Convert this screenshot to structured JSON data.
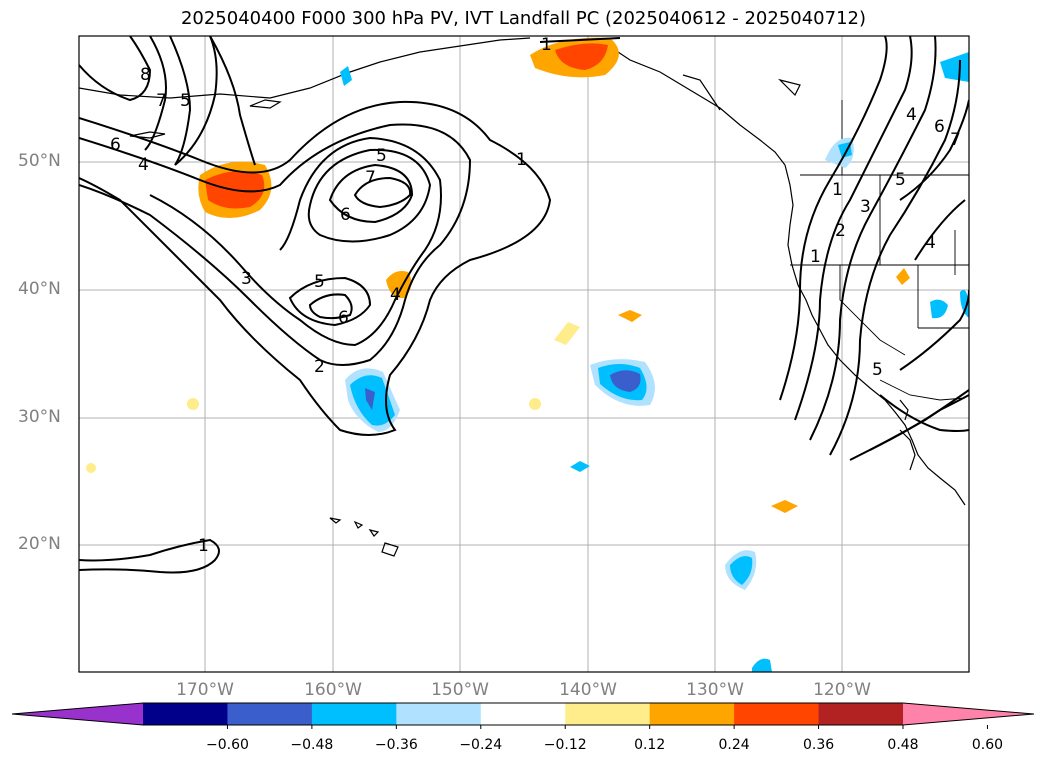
{
  "title": "2025040400 F000 300 hPa PV, IVT Landfall PC (2025040612 - 2025040712)",
  "lat_labels": [
    "50°N",
    "40°N",
    "30°N",
    "20°N"
  ],
  "lon_labels": [
    "170°W",
    "160°W",
    "150°W",
    "140°W",
    "130°W",
    "120°W"
  ],
  "colorbar": {
    "colors": [
      "#9932cc",
      "#00008b",
      "#3a5fcd",
      "#00bfff",
      "#b0e2ff",
      "#ffffff",
      "#ffec8b",
      "#ffa500",
      "#ff4500",
      "#b22222",
      "#ff82ab"
    ],
    "ticks": [
      "−0.60",
      "−0.48",
      "−0.36",
      "−0.24",
      "−0.12",
      "0.12",
      "0.24",
      "0.36",
      "0.48",
      "0.60"
    ]
  },
  "contour_labels": {
    "l1a": "1",
    "l1b": "1",
    "l1c": "1",
    "l1d": "1",
    "l1e": "1",
    "l2a": "2",
    "l2b": "2",
    "l3a": "3",
    "l3b": "3",
    "l4a": "4",
    "l4b": "4",
    "l4c": "4",
    "l4d": "4",
    "l5a": "5",
    "l5b": "5",
    "l5c": "5",
    "l5d": "5",
    "l5e": "5",
    "l6a": "6",
    "l6b": "6",
    "l6c": "6",
    "l6d": "6",
    "l7a": "7",
    "l7b": "7",
    "l7c": "7",
    "l8a": "8"
  }
}
